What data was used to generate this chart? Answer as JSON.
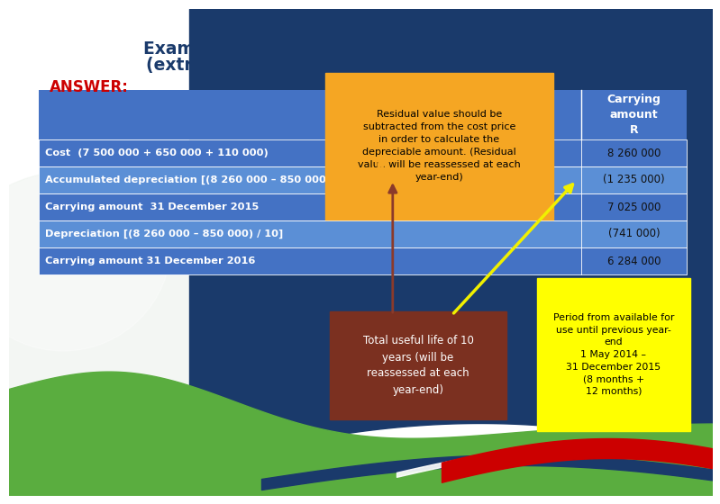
{
  "title_line1": "Example – Depreciation: Straight-line method",
  "title_line2": "(extract from previous assignment question)",
  "answer_label": "ANSWER:",
  "table_header_col2": "Carrying\namount\nR",
  "table_rows": [
    [
      "Cost  (7 500 000 + 650 000 + 110 000)",
      "8 260 000"
    ],
    [
      "Accumulated depreciation [(8 260 000 – 850 000) / 120 x 20]",
      "(1 235 000)"
    ],
    [
      "Carrying amount  31 December 2015",
      "7 025 000"
    ],
    [
      "Depreciation [(8 260 000 – 850 000) / 10]",
      "(741 000)"
    ],
    [
      "Carrying amount 31 December 2016",
      "6 284 000"
    ]
  ],
  "orange_box_text": "Residual value should be\nsubtracted from the cost price\nin order to calculate the\ndepreciable amount. (Residual\nvalue will be reassessed at each\nyear-end)",
  "brown_box_text": "Total useful life of 10\nyears (will be\nreassessed at each\nyear-end)",
  "yellow_box_text": "Period from available for\nuse until previous year-\nend\n1 May 2014 –\n31 December 2015\n(8 months +\n12 months)",
  "bg_color": "#ffffff",
  "title_color": "#1a3a6b",
  "answer_color": "#cc0000",
  "table_header_bg": "#4472c4",
  "table_row_bg1": "#4472c4",
  "table_row_bg2": "#5b8fd6",
  "orange_box_color": "#f5a623",
  "brown_box_color": "#7b3020",
  "yellow_box_color": "#ffff00",
  "wave_navy": "#1a3a6b",
  "wave_red": "#cc0000",
  "wave_green": "#5aad3f",
  "wave_light": "#e8e8e8"
}
